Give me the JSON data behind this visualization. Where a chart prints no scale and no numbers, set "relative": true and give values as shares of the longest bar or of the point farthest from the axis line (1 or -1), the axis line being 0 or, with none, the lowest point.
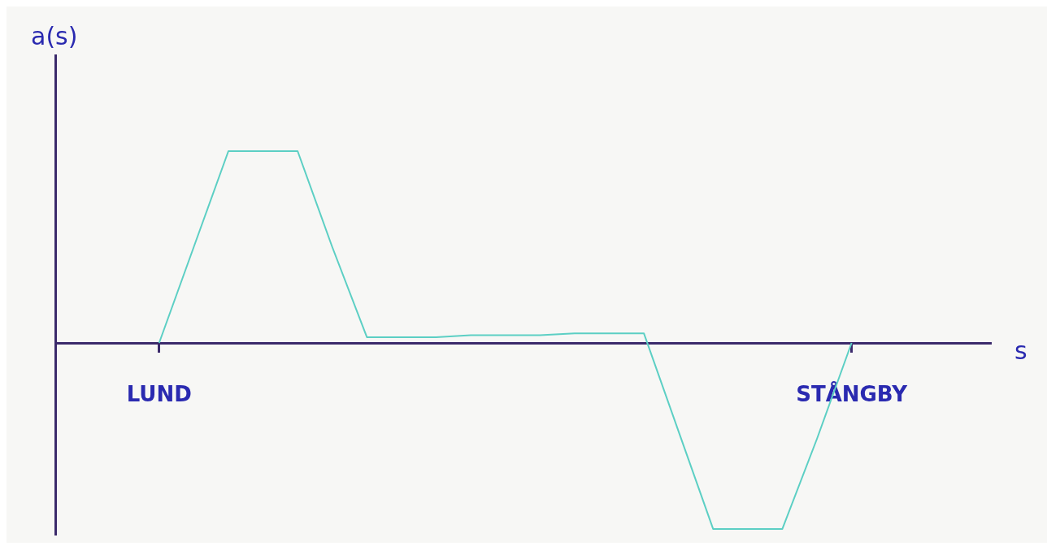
{
  "chart_data": {
    "type": "line",
    "xlabel": "s",
    "ylabel": "a(s)",
    "relative": true,
    "grid": false,
    "legend": false,
    "marker": "none",
    "line_style": "solid",
    "categories": [
      null,
      null,
      null,
      "LUND",
      null,
      null,
      null,
      null,
      null,
      null,
      null,
      null,
      null,
      null,
      null,
      null,
      null,
      null,
      null,
      null,
      null,
      null,
      null,
      "STÅNGBY",
      null,
      null,
      null,
      null
    ],
    "series": [
      {
        "color": "#5ccfc4",
        "values": [
          null,
          null,
          null,
          0,
          0.5,
          1,
          1,
          1,
          0.5,
          0.03,
          0.03,
          0.03,
          0.04,
          0.04,
          0.04,
          0.05,
          0.05,
          0.05,
          -0.46,
          -0.97,
          -0.97,
          -0.97,
          -0.5,
          0,
          null,
          null,
          null,
          null
        ]
      }
    ]
  }
}
